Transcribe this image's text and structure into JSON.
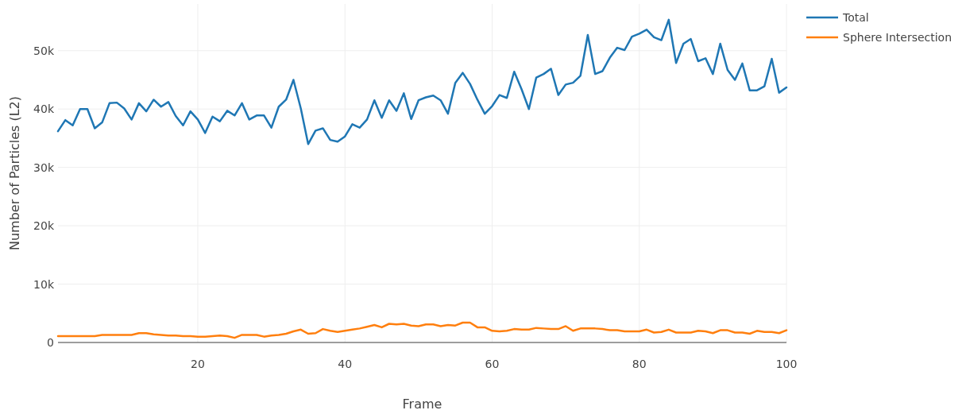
{
  "chart_data": {
    "type": "line",
    "xlabel": "Frame",
    "ylabel": "Number of Particles (L2)",
    "x": [
      1,
      2,
      3,
      4,
      5,
      6,
      7,
      8,
      9,
      10,
      11,
      12,
      13,
      14,
      15,
      16,
      17,
      18,
      19,
      20,
      21,
      22,
      23,
      24,
      25,
      26,
      27,
      28,
      29,
      30,
      31,
      32,
      33,
      34,
      35,
      36,
      37,
      38,
      39,
      40,
      41,
      42,
      43,
      44,
      45,
      46,
      47,
      48,
      49,
      50,
      51,
      52,
      53,
      54,
      55,
      56,
      57,
      58,
      59,
      60,
      61,
      62,
      63,
      64,
      65,
      66,
      67,
      68,
      69,
      70,
      71,
      72,
      73,
      74,
      75,
      76,
      77,
      78,
      79,
      80,
      81,
      82,
      83,
      84,
      85,
      86,
      87,
      88,
      89,
      90,
      91,
      92,
      93,
      94,
      95,
      96,
      97,
      98,
      99,
      100
    ],
    "series": [
      {
        "name": "Total",
        "color": "#1f77b4",
        "values": [
          36200,
          38100,
          37200,
          40000,
          40000,
          36700,
          37700,
          41000,
          41100,
          40100,
          38200,
          41000,
          39600,
          41600,
          40400,
          41200,
          38800,
          37200,
          39600,
          38200,
          35900,
          38700,
          37900,
          39700,
          38900,
          41000,
          38200,
          38900,
          38900,
          36800,
          40400,
          41600,
          45000,
          40100,
          34000,
          36300,
          36700,
          34700,
          34400,
          35300,
          37400,
          36800,
          38200,
          41500,
          38500,
          41500,
          39700,
          42700,
          38300,
          41500,
          42000,
          42300,
          41500,
          39200,
          44500,
          46200,
          44300,
          41600,
          39200,
          40500,
          42400,
          41900,
          46400,
          43400,
          40000,
          45400,
          46000,
          46900,
          42400,
          44200,
          44500,
          45700,
          52700,
          46000,
          46500,
          48800,
          50500,
          50100,
          52400,
          52900,
          53600,
          52300,
          51800,
          55300,
          47900,
          51200,
          52000,
          48200,
          48700,
          46000,
          51200,
          46700,
          45000,
          47800,
          43200,
          43200,
          43900,
          48600,
          42800,
          43700
        ]
      },
      {
        "name": "Sphere Intersection",
        "color": "#ff7f0e",
        "values": [
          1100,
          1100,
          1100,
          1100,
          1100,
          1100,
          1300,
          1300,
          1300,
          1300,
          1300,
          1600,
          1600,
          1400,
          1300,
          1200,
          1200,
          1100,
          1100,
          1000,
          1000,
          1100,
          1200,
          1100,
          800,
          1300,
          1300,
          1300,
          1000,
          1200,
          1300,
          1500,
          1900,
          2200,
          1500,
          1600,
          2300,
          2000,
          1800,
          2000,
          2200,
          2400,
          2700,
          3000,
          2600,
          3200,
          3100,
          3200,
          2900,
          2800,
          3100,
          3100,
          2800,
          3000,
          2900,
          3400,
          3400,
          2600,
          2600,
          2000,
          1900,
          2000,
          2300,
          2200,
          2200,
          2500,
          2400,
          2300,
          2300,
          2800,
          2000,
          2400,
          2400,
          2400,
          2300,
          2100,
          2100,
          1900,
          1900,
          1900,
          2200,
          1700,
          1800,
          2200,
          1700,
          1700,
          1700,
          2000,
          1900,
          1600,
          2100,
          2100,
          1700,
          1700,
          1500,
          2000,
          1800,
          1800,
          1600,
          2100
        ]
      }
    ],
    "xlim": [
      1,
      100
    ],
    "xticks": [
      20,
      40,
      60,
      80,
      100
    ],
    "ylim": [
      0,
      58000
    ],
    "yticks": [
      {
        "value": 0,
        "label": "0"
      },
      {
        "value": 10000,
        "label": "10k"
      },
      {
        "value": 20000,
        "label": "20k"
      },
      {
        "value": 30000,
        "label": "30k"
      },
      {
        "value": 40000,
        "label": "40k"
      },
      {
        "value": 50000,
        "label": "50k"
      }
    ],
    "grid": true,
    "legend": "top right",
    "marker": "none",
    "line_style": "solid"
  }
}
